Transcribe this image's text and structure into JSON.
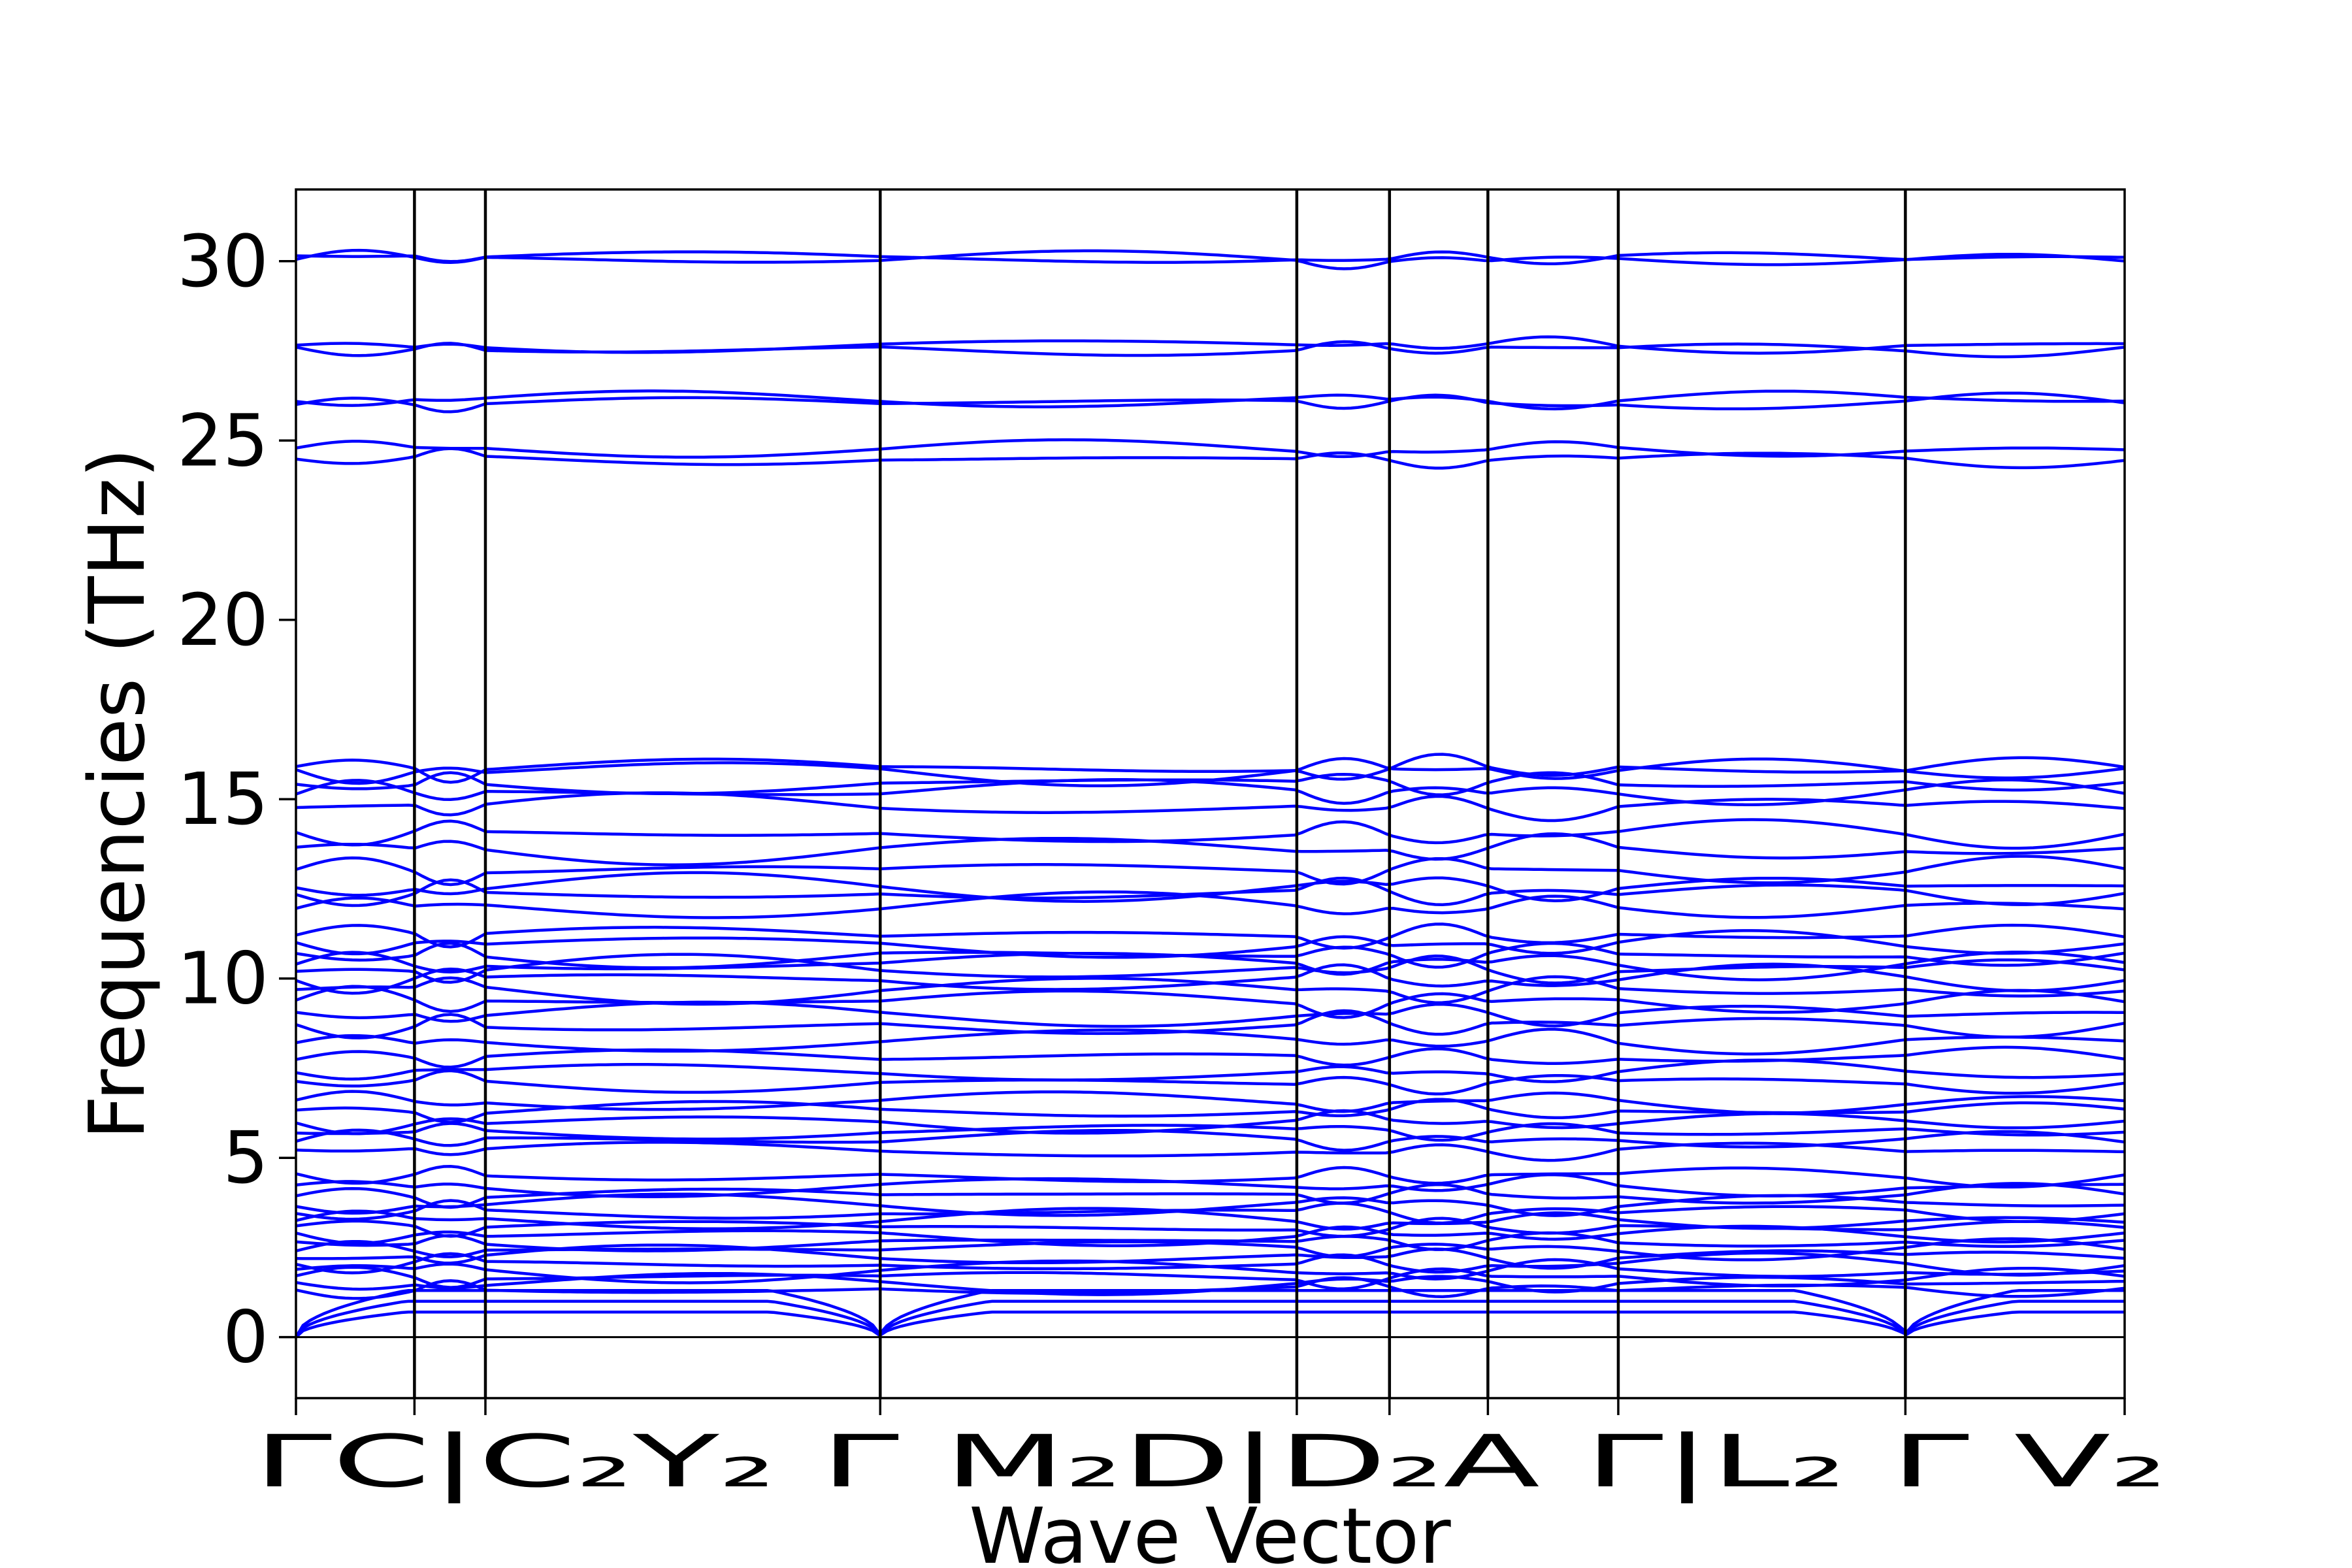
{
  "chart_data": {
    "type": "line",
    "title": "",
    "xlabel": "Wave Vector",
    "ylabel": "Frequencies (THz)",
    "ylim": [
      -1.7,
      32
    ],
    "yticks": [
      0,
      5,
      10,
      15,
      20,
      25,
      30
    ],
    "grid": false,
    "line_color": "#0000ff",
    "zero_line": true,
    "x_segment_fractions": [
      0,
      0.0648,
      0.1036,
      0.3195,
      0.5473,
      0.598,
      0.6518,
      0.7231,
      0.8801,
      1.0
    ],
    "x_tick_labels": [
      {
        "pos": 0,
        "text": "Γ"
      },
      {
        "pos": 0.0648,
        "text": "C|C"
      },
      {
        "pos": 0.1036,
        "text": "Y"
      },
      {
        "pos": 0.3195,
        "text": "Γ"
      },
      {
        "pos": 0.5473,
        "text": "M"
      },
      {
        "pos": 0.598,
        "text": "D|D"
      },
      {
        "pos": 0.6518,
        "text": "A"
      },
      {
        "pos": 0.7231,
        "text": "Γ|L"
      },
      {
        "pos": 0.8801,
        "text": "Γ"
      },
      {
        "pos": 1.0,
        "text": "V"
      }
    ],
    "x_tick_label_text": "ΓC|C₂Y₂ Γ M₂D|D₂A Γ|L₂ Γ V₂",
    "optical_branches_thz": [
      30.05,
      30.1,
      27.55,
      27.65,
      26.05,
      26.15,
      24.5,
      24.75,
      15.85,
      15.8,
      15.45,
      15.2,
      14.8,
      14.05,
      13.6,
      13.0,
      12.55,
      12.4,
      12.0,
      11.2,
      10.95,
      10.65,
      10.4,
      10.25,
      10.0,
      9.7,
      9.35,
      9.0,
      8.7,
      8.25,
      7.8,
      7.4,
      7.1,
      6.55,
      6.3,
      6.0,
      5.75,
      5.5,
      5.2,
      4.5,
      4.2,
      3.95,
      3.7,
      3.5,
      3.25,
      3.05,
      2.85,
      2.65,
      2.45,
      2.25,
      2.05,
      1.85,
      1.65,
      1.5,
      1.35
    ],
    "acoustic_branches_at_gamma_thz": [
      0,
      0,
      0
    ],
    "acoustic_branches_max_thz": [
      1.3,
      1.0,
      0.7
    ]
  }
}
